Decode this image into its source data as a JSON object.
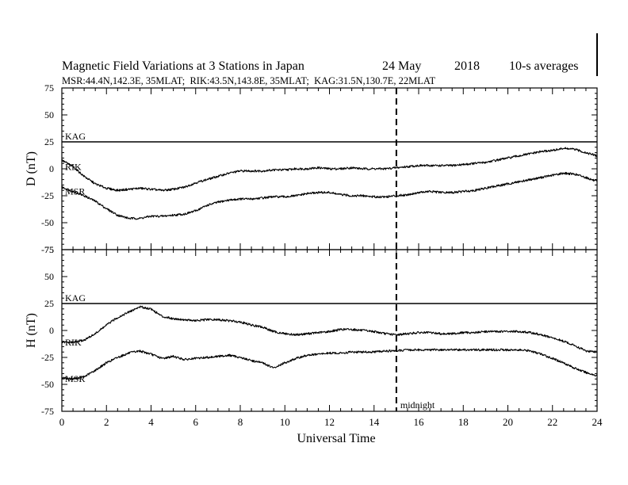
{
  "chart_data": {
    "type": "line",
    "title": "Magnetic Field Variations at 3 Stations in Japan",
    "date_text": "24 May",
    "year_text": "2018",
    "avg_text": "10-s averages",
    "subtitle": "MSR:44.4N,142.3E, 35MLAT;  RIK:43.5N,143.8E, 35MLAT;  KAG:31.5N,130.7E, 22MLAT",
    "xlabel": "Universal Time",
    "xlim": [
      0,
      24
    ],
    "xticks": [
      "0",
      "2",
      "4",
      "6",
      "8",
      "10",
      "12",
      "14",
      "16",
      "18",
      "20",
      "22",
      "24"
    ],
    "midnight_x": 15,
    "midnight_label": "midnight",
    "line_color": "#000000",
    "panels": [
      {
        "ylabel": "D (nT)",
        "ylim": [
          -75,
          75
        ],
        "yticks": [
          "75",
          "50",
          "25",
          "0",
          "-25",
          "-50",
          "-75"
        ],
        "series": [
          {
            "name": "KAG",
            "x": [
              0,
              24
            ],
            "y": [
              25,
              25
            ]
          },
          {
            "name": "RIK",
            "x": [
              0,
              0.5,
              1,
              1.5,
              2,
              2.5,
              3,
              3.5,
              4,
              4.5,
              5,
              5.5,
              6,
              6.5,
              7,
              7.5,
              8,
              8.5,
              9,
              9.5,
              10,
              10.5,
              11,
              11.5,
              12,
              12.5,
              13,
              13.5,
              14,
              14.5,
              15,
              15.5,
              16,
              16.5,
              17,
              17.5,
              18,
              18.5,
              19,
              19.5,
              20,
              20.5,
              21,
              21.5,
              22,
              22.5,
              23,
              23.5,
              24
            ],
            "y": [
              8,
              2,
              -7,
              -14,
              -18,
              -20,
              -19,
              -18,
              -19,
              -20,
              -19,
              -17,
              -13,
              -10,
              -7,
              -4,
              -2,
              -2,
              -2,
              -1,
              -1,
              0,
              0,
              1,
              0,
              0,
              1,
              0,
              0,
              0,
              1,
              2,
              3,
              3,
              3,
              3,
              4,
              5,
              6,
              8,
              10,
              12,
              14,
              16,
              17,
              19,
              18,
              15,
              12
            ]
          },
          {
            "name": "MSR",
            "x": [
              0,
              0.5,
              1,
              1.5,
              2,
              2.5,
              3,
              3.5,
              4,
              4.5,
              5,
              5.5,
              6,
              6.5,
              7,
              7.5,
              8,
              8.5,
              9,
              9.5,
              10,
              10.5,
              11,
              11.5,
              12,
              12.5,
              13,
              13.5,
              14,
              14.5,
              15,
              15.5,
              16,
              16.5,
              17,
              17.5,
              18,
              18.5,
              19,
              19.5,
              20,
              20.5,
              21,
              21.5,
              22,
              22.5,
              23,
              23.5,
              24
            ],
            "y": [
              -17,
              -21,
              -25,
              -30,
              -37,
              -43,
              -46,
              -46,
              -44,
              -44,
              -43,
              -42,
              -39,
              -34,
              -31,
              -29,
              -28,
              -28,
              -27,
              -26,
              -26,
              -25,
              -23,
              -22,
              -22,
              -24,
              -25,
              -25,
              -26,
              -26,
              -25,
              -24,
              -22,
              -21,
              -22,
              -22,
              -21,
              -20,
              -18,
              -16,
              -14,
              -12,
              -10,
              -8,
              -6,
              -4,
              -5,
              -8,
              -12
            ]
          }
        ]
      },
      {
        "ylabel": "H (nT)",
        "ylim": [
          -75,
          75
        ],
        "yticks": [
          "75",
          "50",
          "25",
          "0",
          "-25",
          "-50",
          "-75"
        ],
        "series": [
          {
            "name": "KAG",
            "x": [
              0,
              24
            ],
            "y": [
              25,
              25
            ]
          },
          {
            "name": "RIK",
            "x": [
              0,
              0.5,
              1,
              1.5,
              2,
              2.5,
              3,
              3.5,
              4,
              4.5,
              5,
              5.5,
              6,
              6.5,
              7,
              7.5,
              8,
              8.5,
              9,
              9.5,
              10,
              10.5,
              11,
              11.5,
              12,
              12.5,
              13,
              13.5,
              14,
              14.5,
              15,
              15.5,
              16,
              16.5,
              17,
              17.5,
              18,
              18.5,
              19,
              19.5,
              20,
              20.5,
              21,
              21.5,
              22,
              22.5,
              23,
              23.5,
              24
            ],
            "y": [
              -11,
              -11,
              -9,
              -3,
              5,
              12,
              17,
              22,
              20,
              13,
              11,
              10,
              9,
              10,
              10,
              9,
              8,
              5,
              3,
              -1,
              -3,
              -4,
              -3,
              -2,
              -1,
              1,
              1,
              0,
              -1,
              -3,
              -4,
              -3,
              -2,
              -2,
              -3,
              -3,
              -2,
              -2,
              -1,
              -1,
              -1,
              -1,
              -2,
              -4,
              -7,
              -10,
              -14,
              -19,
              -20
            ]
          },
          {
            "name": "MSR",
            "x": [
              0,
              0.5,
              1,
              1.5,
              2,
              2.5,
              3,
              3.5,
              4,
              4.5,
              5,
              5.5,
              6,
              6.5,
              7,
              7.5,
              8,
              8.5,
              9,
              9.5,
              10,
              10.5,
              11,
              11.5,
              12,
              12.5,
              13,
              13.5,
              14,
              14.5,
              15,
              15.5,
              16,
              16.5,
              17,
              17.5,
              18,
              18.5,
              19,
              19.5,
              20,
              20.5,
              21,
              21.5,
              22,
              22.5,
              23,
              23.5,
              24
            ],
            "y": [
              -44,
              -45,
              -43,
              -37,
              -30,
              -25,
              -21,
              -19,
              -22,
              -26,
              -24,
              -27,
              -26,
              -25,
              -24,
              -23,
              -25,
              -28,
              -30,
              -35,
              -30,
              -26,
              -23,
              -22,
              -21,
              -21,
              -20,
              -20,
              -20,
              -19,
              -19,
              -18,
              -18,
              -18,
              -18,
              -18,
              -18,
              -18,
              -18,
              -18,
              -18,
              -18,
              -19,
              -22,
              -26,
              -30,
              -35,
              -39,
              -42
            ]
          }
        ]
      }
    ]
  }
}
